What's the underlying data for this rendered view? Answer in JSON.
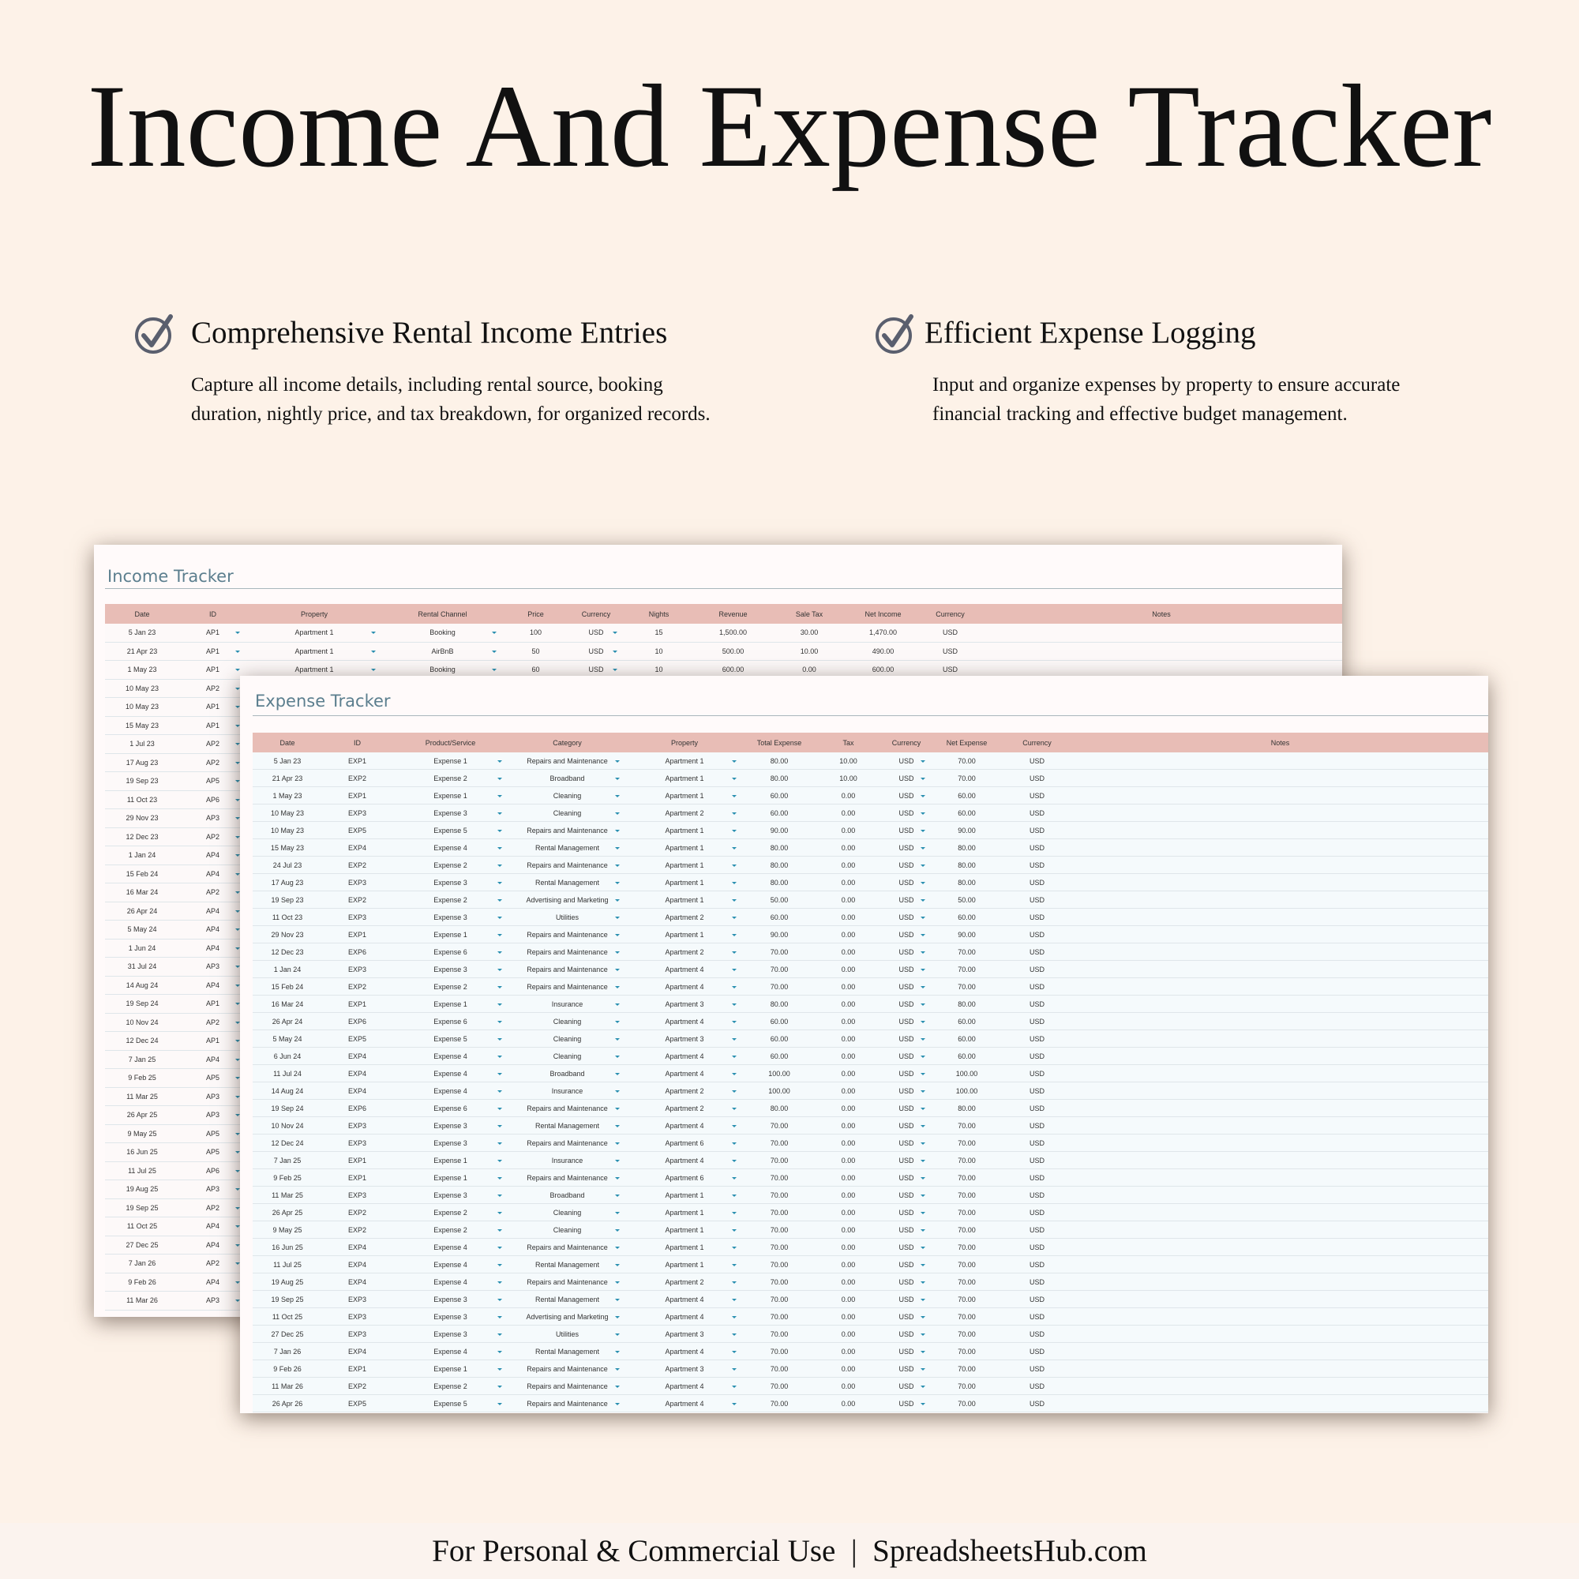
{
  "header": {
    "title": "Income And Expense Tracker"
  },
  "features": [
    {
      "heading": "Comprehensive Rental Income Entries",
      "text": "Capture all income details, including rental source, booking duration, nightly price, and tax breakdown, for organized records."
    },
    {
      "heading": "Efficient Expense Logging",
      "text": "Input and organize expenses by property to ensure accurate financial tracking and effective budget management."
    }
  ],
  "income_tracker": {
    "title": "Income Tracker",
    "columns": [
      "Date",
      "ID",
      "Property",
      "Rental Channel",
      "Price",
      "Currency",
      "Nights",
      "Revenue",
      "Sale Tax",
      "Net Income",
      "Currency",
      "Notes"
    ],
    "rows": [
      [
        "5 Jan 23",
        "AP1",
        "Apartment 1",
        "Booking",
        "100",
        "USD",
        "15",
        "1,500.00",
        "30.00",
        "1,470.00",
        "USD"
      ],
      [
        "21 Apr 23",
        "AP1",
        "Apartment 1",
        "AirBnB",
        "50",
        "USD",
        "10",
        "500.00",
        "10.00",
        "490.00",
        "USD"
      ],
      [
        "1 May 23",
        "AP1",
        "Apartment 1",
        "Booking",
        "60",
        "USD",
        "10",
        "600.00",
        "0.00",
        "600.00",
        "USD"
      ],
      [
        "10 May 23",
        "AP2"
      ],
      [
        "10 May 23",
        "AP1"
      ],
      [
        "15 May 23",
        "AP1"
      ],
      [
        "1 Jul 23",
        "AP2"
      ],
      [
        "17 Aug 23",
        "AP2"
      ],
      [
        "19 Sep 23",
        "AP5"
      ],
      [
        "11 Oct 23",
        "AP6"
      ],
      [
        "29 Nov 23",
        "AP3"
      ],
      [
        "12 Dec 23",
        "AP2"
      ],
      [
        "1 Jan 24",
        "AP4"
      ],
      [
        "15 Feb 24",
        "AP4"
      ],
      [
        "16 Mar 24",
        "AP2"
      ],
      [
        "26 Apr 24",
        "AP4"
      ],
      [
        "5 May 24",
        "AP4"
      ],
      [
        "1 Jun 24",
        "AP4"
      ],
      [
        "31 Jul 24",
        "AP3"
      ],
      [
        "14 Aug 24",
        "AP4"
      ],
      [
        "19 Sep 24",
        "AP1"
      ],
      [
        "10 Nov 24",
        "AP2"
      ],
      [
        "12 Dec 24",
        "AP1"
      ],
      [
        "7 Jan 25",
        "AP4"
      ],
      [
        "9 Feb 25",
        "AP5"
      ],
      [
        "11 Mar 25",
        "AP3"
      ],
      [
        "26 Apr 25",
        "AP3"
      ],
      [
        "9 May 25",
        "AP5"
      ],
      [
        "16 Jun 25",
        "AP5"
      ],
      [
        "11 Jul 25",
        "AP6"
      ],
      [
        "19 Aug 25",
        "AP3"
      ],
      [
        "19 Sep 25",
        "AP2"
      ],
      [
        "11 Oct 25",
        "AP4"
      ],
      [
        "27 Dec 25",
        "AP4"
      ],
      [
        "7 Jan 26",
        "AP2"
      ],
      [
        "9 Feb 26",
        "AP4"
      ],
      [
        "11 Mar 26",
        "AP3"
      ]
    ]
  },
  "expense_tracker": {
    "title": "Expense Tracker",
    "columns": [
      "Date",
      "ID",
      "Product/Service",
      "Category",
      "Property",
      "Total Expense",
      "Tax",
      "Currency",
      "Net Expense",
      "Currency",
      "Notes"
    ],
    "rows": [
      [
        "5 Jan 23",
        "EXP1",
        "Expense 1",
        "Repairs and Maintenance",
        "Apartment 1",
        "80.00",
        "10.00",
        "USD",
        "70.00",
        "USD"
      ],
      [
        "21 Apr 23",
        "EXP2",
        "Expense 2",
        "Broadband",
        "Apartment 1",
        "80.00",
        "10.00",
        "USD",
        "70.00",
        "USD"
      ],
      [
        "1 May 23",
        "EXP1",
        "Expense 1",
        "Cleaning",
        "Apartment 1",
        "60.00",
        "0.00",
        "USD",
        "60.00",
        "USD"
      ],
      [
        "10 May 23",
        "EXP3",
        "Expense 3",
        "Cleaning",
        "Apartment 2",
        "60.00",
        "0.00",
        "USD",
        "60.00",
        "USD"
      ],
      [
        "10 May 23",
        "EXP5",
        "Expense 5",
        "Repairs and Maintenance",
        "Apartment 1",
        "90.00",
        "0.00",
        "USD",
        "90.00",
        "USD"
      ],
      [
        "15 May 23",
        "EXP4",
        "Expense 4",
        "Rental Management",
        "Apartment 1",
        "80.00",
        "0.00",
        "USD",
        "80.00",
        "USD"
      ],
      [
        "24 Jul 23",
        "EXP2",
        "Expense 2",
        "Repairs and Maintenance",
        "Apartment 1",
        "80.00",
        "0.00",
        "USD",
        "80.00",
        "USD"
      ],
      [
        "17 Aug 23",
        "EXP3",
        "Expense 3",
        "Rental Management",
        "Apartment 1",
        "80.00",
        "0.00",
        "USD",
        "80.00",
        "USD"
      ],
      [
        "19 Sep 23",
        "EXP2",
        "Expense 2",
        "Advertising and Marketing",
        "Apartment 1",
        "50.00",
        "0.00",
        "USD",
        "50.00",
        "USD"
      ],
      [
        "11 Oct 23",
        "EXP3",
        "Expense 3",
        "Utilities",
        "Apartment 2",
        "60.00",
        "0.00",
        "USD",
        "60.00",
        "USD"
      ],
      [
        "29 Nov 23",
        "EXP1",
        "Expense 1",
        "Repairs and Maintenance",
        "Apartment 1",
        "90.00",
        "0.00",
        "USD",
        "90.00",
        "USD"
      ],
      [
        "12 Dec 23",
        "EXP6",
        "Expense 6",
        "Repairs and Maintenance",
        "Apartment 2",
        "70.00",
        "0.00",
        "USD",
        "70.00",
        "USD"
      ],
      [
        "1 Jan 24",
        "EXP3",
        "Expense 3",
        "Repairs and Maintenance",
        "Apartment 4",
        "70.00",
        "0.00",
        "USD",
        "70.00",
        "USD"
      ],
      [
        "15 Feb 24",
        "EXP2",
        "Expense 2",
        "Repairs and Maintenance",
        "Apartment 4",
        "70.00",
        "0.00",
        "USD",
        "70.00",
        "USD"
      ],
      [
        "16 Mar 24",
        "EXP1",
        "Expense 1",
        "Insurance",
        "Apartment 3",
        "80.00",
        "0.00",
        "USD",
        "80.00",
        "USD"
      ],
      [
        "26 Apr 24",
        "EXP6",
        "Expense 6",
        "Cleaning",
        "Apartment 4",
        "60.00",
        "0.00",
        "USD",
        "60.00",
        "USD"
      ],
      [
        "5 May 24",
        "EXP5",
        "Expense 5",
        "Cleaning",
        "Apartment 3",
        "60.00",
        "0.00",
        "USD",
        "60.00",
        "USD"
      ],
      [
        "6 Jun 24",
        "EXP4",
        "Expense 4",
        "Cleaning",
        "Apartment 4",
        "60.00",
        "0.00",
        "USD",
        "60.00",
        "USD"
      ],
      [
        "11 Jul 24",
        "EXP4",
        "Expense 4",
        "Broadband",
        "Apartment 4",
        "100.00",
        "0.00",
        "USD",
        "100.00",
        "USD"
      ],
      [
        "14 Aug 24",
        "EXP4",
        "Expense 4",
        "Insurance",
        "Apartment 2",
        "100.00",
        "0.00",
        "USD",
        "100.00",
        "USD"
      ],
      [
        "19 Sep 24",
        "EXP6",
        "Expense 6",
        "Repairs and Maintenance",
        "Apartment 2",
        "80.00",
        "0.00",
        "USD",
        "80.00",
        "USD"
      ],
      [
        "10 Nov 24",
        "EXP3",
        "Expense 3",
        "Rental Management",
        "Apartment 4",
        "70.00",
        "0.00",
        "USD",
        "70.00",
        "USD"
      ],
      [
        "12 Dec 24",
        "EXP3",
        "Expense 3",
        "Repairs and Maintenance",
        "Apartment 6",
        "70.00",
        "0.00",
        "USD",
        "70.00",
        "USD"
      ],
      [
        "7 Jan 25",
        "EXP1",
        "Expense 1",
        "Insurance",
        "Apartment 4",
        "70.00",
        "0.00",
        "USD",
        "70.00",
        "USD"
      ],
      [
        "9 Feb 25",
        "EXP1",
        "Expense 1",
        "Repairs and Maintenance",
        "Apartment 6",
        "70.00",
        "0.00",
        "USD",
        "70.00",
        "USD"
      ],
      [
        "11 Mar 25",
        "EXP3",
        "Expense 3",
        "Broadband",
        "Apartment 1",
        "70.00",
        "0.00",
        "USD",
        "70.00",
        "USD"
      ],
      [
        "26 Apr 25",
        "EXP2",
        "Expense 2",
        "Cleaning",
        "Apartment 1",
        "70.00",
        "0.00",
        "USD",
        "70.00",
        "USD"
      ],
      [
        "9 May 25",
        "EXP2",
        "Expense 2",
        "Cleaning",
        "Apartment 1",
        "70.00",
        "0.00",
        "USD",
        "70.00",
        "USD"
      ],
      [
        "16 Jun 25",
        "EXP4",
        "Expense 4",
        "Repairs and Maintenance",
        "Apartment 1",
        "70.00",
        "0.00",
        "USD",
        "70.00",
        "USD"
      ],
      [
        "11 Jul 25",
        "EXP4",
        "Expense 4",
        "Rental Management",
        "Apartment 1",
        "70.00",
        "0.00",
        "USD",
        "70.00",
        "USD"
      ],
      [
        "19 Aug 25",
        "EXP4",
        "Expense 4",
        "Repairs and Maintenance",
        "Apartment 2",
        "70.00",
        "0.00",
        "USD",
        "70.00",
        "USD"
      ],
      [
        "19 Sep 25",
        "EXP3",
        "Expense 3",
        "Rental Management",
        "Apartment 4",
        "70.00",
        "0.00",
        "USD",
        "70.00",
        "USD"
      ],
      [
        "11 Oct 25",
        "EXP3",
        "Expense 3",
        "Advertising and Marketing",
        "Apartment 4",
        "70.00",
        "0.00",
        "USD",
        "70.00",
        "USD"
      ],
      [
        "27 Dec 25",
        "EXP3",
        "Expense 3",
        "Utilities",
        "Apartment 3",
        "70.00",
        "0.00",
        "USD",
        "70.00",
        "USD"
      ],
      [
        "7 Jan 26",
        "EXP4",
        "Expense 4",
        "Rental Management",
        "Apartment 4",
        "70.00",
        "0.00",
        "USD",
        "70.00",
        "USD"
      ],
      [
        "9 Feb 26",
        "EXP1",
        "Expense 1",
        "Repairs and Maintenance",
        "Apartment 3",
        "70.00",
        "0.00",
        "USD",
        "70.00",
        "USD"
      ],
      [
        "11 Mar 26",
        "EXP2",
        "Expense 2",
        "Repairs and Maintenance",
        "Apartment 4",
        "70.00",
        "0.00",
        "USD",
        "70.00",
        "USD"
      ],
      [
        "26 Apr 26",
        "EXP5",
        "Expense 5",
        "Repairs and Maintenance",
        "Apartment 4",
        "70.00",
        "0.00",
        "USD",
        "70.00",
        "USD"
      ]
    ]
  },
  "footer": {
    "text": "For Personal & Commercial Use  |  SpreadsheetsHub.com"
  }
}
